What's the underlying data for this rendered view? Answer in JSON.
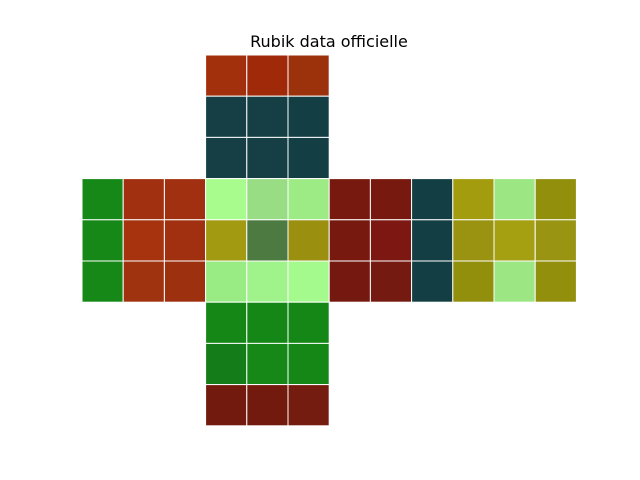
{
  "chart_data": {
    "type": "heatmap",
    "title": "Rubik data officielle",
    "grid": true,
    "faces": [
      {
        "name": "up",
        "colors": [
          [
            "#a3300d",
            "#a0290a",
            "#9b320b"
          ],
          [
            "#153f44",
            "#153f44",
            "#133e44"
          ],
          [
            "#153f44",
            "#153f44",
            "#133e44"
          ]
        ]
      },
      {
        "name": "left",
        "colors": [
          [
            "#158817",
            "#a0300f",
            "#a0300f"
          ],
          [
            "#158817",
            "#a6330e",
            "#a0300f"
          ],
          [
            "#158817",
            "#a0330f",
            "#9d310f"
          ]
        ]
      },
      {
        "name": "front",
        "colors": [
          [
            "#a8fc8e",
            "#98dd84",
            "#9ceb84"
          ],
          [
            "#a29a10",
            "#4d7a41",
            "#9a8f0f"
          ],
          [
            "#99eb83",
            "#a0f38b",
            "#a5fa8d"
          ]
        ]
      },
      {
        "name": "right",
        "colors": [
          [
            "#781910",
            "#781910",
            "#133f44"
          ],
          [
            "#781910",
            "#7c1811",
            "#133f44"
          ],
          [
            "#751910",
            "#751a10",
            "#133f44"
          ]
        ]
      },
      {
        "name": "back",
        "colors": [
          [
            "#a39c0f",
            "#9ce684",
            "#928f0c"
          ],
          [
            "#9a9311",
            "#a5a011",
            "#999411"
          ],
          [
            "#928f0c",
            "#9ce684",
            "#928f0c"
          ]
        ]
      },
      {
        "name": "down",
        "colors": [
          [
            "#148717",
            "#148717",
            "#148717"
          ],
          [
            "#157c1a",
            "#158817",
            "#148717"
          ],
          [
            "#721a0e",
            "#731a0e",
            "#741c10"
          ]
        ]
      }
    ]
  }
}
